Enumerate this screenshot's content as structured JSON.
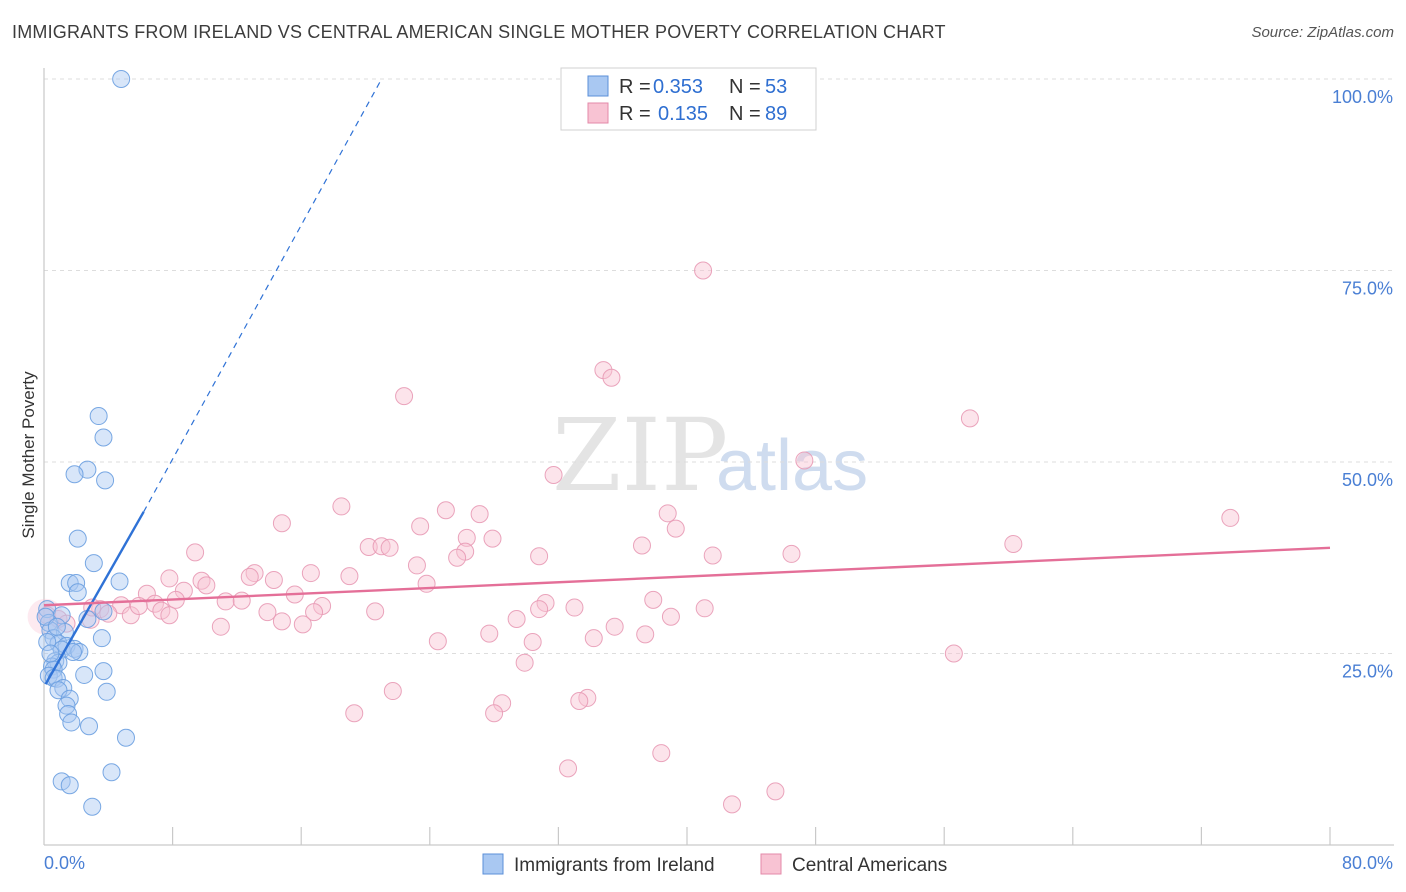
{
  "title": "IMMIGRANTS FROM IRELAND VS CENTRAL AMERICAN SINGLE MOTHER POVERTY CORRELATION CHART",
  "source": "Source: ZipAtlas.com",
  "watermark": {
    "part1": "ZIP",
    "part2": "atlas"
  },
  "legend_top": {
    "r_label": "R =",
    "n_label": "N =",
    "rows": [
      {
        "r": "0.353",
        "n": "53",
        "color": "#a9c8f2",
        "border": "#5b8fd8"
      },
      {
        "r": "0.135",
        "n": "89",
        "color": "#f8c3d3",
        "border": "#e38aa8"
      }
    ]
  },
  "legend_bottom": [
    {
      "label": "Immigrants from Ireland",
      "color": "#a9c8f2",
      "border": "#5b8fd8"
    },
    {
      "label": "Central Americans",
      "color": "#f8c3d3",
      "border": "#e38aa8"
    }
  ],
  "colors": {
    "blue_fill": "#a9c8f2",
    "blue_stroke": "#6a9ee0",
    "blue_line": "#2f72d6",
    "pink_fill": "#f8c3d3",
    "pink_stroke": "#e89ab5",
    "pink_line": "#e46f98",
    "axis_text": "#4a7fd4",
    "grid": "#dddddd"
  },
  "chart_data": {
    "type": "scatter",
    "title": "IMMIGRANTS FROM IRELAND VS CENTRAL AMERICAN SINGLE MOTHER POVERTY CORRELATION CHART",
    "xlabel": "",
    "ylabel": "Single Mother Poverty",
    "x_tick_labels": [
      "0.0%",
      "80.0%"
    ],
    "y_tick_labels": [
      "25.0%",
      "50.0%",
      "75.0%",
      "100.0%"
    ],
    "xlim": [
      0,
      80
    ],
    "ylim": [
      0,
      100
    ],
    "grid": true,
    "legend_position": "top-center",
    "series": [
      {
        "name": "Immigrants from Ireland",
        "r": 0.353,
        "n": 53,
        "trend": {
          "x0": 0.1,
          "y0": 21.0,
          "x1": 6.2,
          "y1": 43.5,
          "dashed_to_x": 21.0,
          "dashed_to_y": 100.0
        },
        "points": [
          [
            4.8,
            100
          ],
          [
            3.4,
            56
          ],
          [
            3.7,
            53.2
          ],
          [
            2.7,
            49
          ],
          [
            1.9,
            48.4
          ],
          [
            3.8,
            47.6
          ],
          [
            2.1,
            40
          ],
          [
            3.1,
            36.8
          ],
          [
            1.6,
            34.2
          ],
          [
            2.0,
            34.2
          ],
          [
            4.7,
            34.4
          ],
          [
            2.1,
            33
          ],
          [
            0.2,
            30.8
          ],
          [
            1.1,
            30
          ],
          [
            2.7,
            29.5
          ],
          [
            3.7,
            30.5
          ],
          [
            0.3,
            29
          ],
          [
            0.4,
            28
          ],
          [
            1.3,
            27.8
          ],
          [
            0.6,
            27
          ],
          [
            3.6,
            27
          ],
          [
            0.9,
            26.3
          ],
          [
            1.4,
            26
          ],
          [
            1.1,
            25.5
          ],
          [
            1.9,
            25.6
          ],
          [
            2.2,
            25.2
          ],
          [
            1.8,
            25.2
          ],
          [
            0.7,
            24
          ],
          [
            0.9,
            23.8
          ],
          [
            0.5,
            23.3
          ],
          [
            0.6,
            22.9
          ],
          [
            3.7,
            22.7
          ],
          [
            0.3,
            22.1
          ],
          [
            0.6,
            21.8
          ],
          [
            0.8,
            21.7
          ],
          [
            2.5,
            22.2
          ],
          [
            1.2,
            20.5
          ],
          [
            0.9,
            20.2
          ],
          [
            3.9,
            20
          ],
          [
            1.6,
            19.1
          ],
          [
            1.4,
            18.2
          ],
          [
            1.5,
            17.1
          ],
          [
            1.7,
            16
          ],
          [
            2.8,
            15.5
          ],
          [
            5.1,
            14
          ],
          [
            4.2,
            9.5
          ],
          [
            1.1,
            8.3
          ],
          [
            1.6,
            7.8
          ],
          [
            3.0,
            5
          ],
          [
            0.1,
            29.8
          ],
          [
            0.2,
            26.5
          ],
          [
            0.4,
            25
          ],
          [
            0.8,
            28.5
          ]
        ]
      },
      {
        "name": "Central Americans",
        "r": 0.135,
        "n": 89,
        "trend": {
          "x0": 0.0,
          "y0": 31.3,
          "x1": 80.0,
          "y1": 38.8
        },
        "points": [
          [
            41,
            75
          ],
          [
            34.8,
            62
          ],
          [
            35.3,
            61
          ],
          [
            22.4,
            58.6
          ],
          [
            57.6,
            55.7
          ],
          [
            47.3,
            50.2
          ],
          [
            31.7,
            48.3
          ],
          [
            38.8,
            43.3
          ],
          [
            18.5,
            44.2
          ],
          [
            25.0,
            43.7
          ],
          [
            27.1,
            43.2
          ],
          [
            73.8,
            42.7
          ],
          [
            14.8,
            42
          ],
          [
            23.4,
            41.6
          ],
          [
            39.3,
            41.3
          ],
          [
            26.3,
            40.1
          ],
          [
            27.9,
            40
          ],
          [
            20.2,
            38.9
          ],
          [
            21.0,
            39
          ],
          [
            21.5,
            38.8
          ],
          [
            37.2,
            39.1
          ],
          [
            60.3,
            39.3
          ],
          [
            9.4,
            38.2
          ],
          [
            26.2,
            38.3
          ],
          [
            25.7,
            37.5
          ],
          [
            30.8,
            37.7
          ],
          [
            41.6,
            37.8
          ],
          [
            23.2,
            36.5
          ],
          [
            13.1,
            35.5
          ],
          [
            16.6,
            35.5
          ],
          [
            19.0,
            35.1
          ],
          [
            12.8,
            35
          ],
          [
            9.8,
            34.5
          ],
          [
            14.3,
            34.6
          ],
          [
            10.1,
            33.9
          ],
          [
            23.8,
            34.1
          ],
          [
            8.7,
            33.2
          ],
          [
            6.4,
            32.8
          ],
          [
            15.6,
            32.7
          ],
          [
            8.2,
            32
          ],
          [
            11.3,
            31.8
          ],
          [
            12.3,
            31.9
          ],
          [
            6.9,
            31.5
          ],
          [
            4.8,
            31.3
          ],
          [
            31.2,
            31.6
          ],
          [
            37.9,
            32
          ],
          [
            7.3,
            30.6
          ],
          [
            3.5,
            30.8
          ],
          [
            17.3,
            31.2
          ],
          [
            30.8,
            30.8
          ],
          [
            41.1,
            30.9
          ],
          [
            33.0,
            31.0
          ],
          [
            4.0,
            30.2
          ],
          [
            13.9,
            30.4
          ],
          [
            16.8,
            30.4
          ],
          [
            20.6,
            30.5
          ],
          [
            5.4,
            30.0
          ],
          [
            7.8,
            30
          ],
          [
            2.9,
            29.4
          ],
          [
            0.2,
            30.0
          ],
          [
            0.9,
            29.5
          ],
          [
            1.4,
            28.9
          ],
          [
            29.4,
            29.5
          ],
          [
            14.8,
            29.2
          ],
          [
            16.1,
            28.8
          ],
          [
            11.0,
            28.5
          ],
          [
            35.5,
            28.5
          ],
          [
            39.0,
            29.8
          ],
          [
            27.7,
            27.6
          ],
          [
            34.2,
            27
          ],
          [
            37.4,
            27.5
          ],
          [
            24.5,
            26.6
          ],
          [
            30.4,
            26.5
          ],
          [
            56.6,
            25
          ],
          [
            29.9,
            23.8
          ],
          [
            21.7,
            20.1
          ],
          [
            33.8,
            19.2
          ],
          [
            33.3,
            18.8
          ],
          [
            28.5,
            18.5
          ],
          [
            28.0,
            17.2
          ],
          [
            19.3,
            17.2
          ],
          [
            38.4,
            12.0
          ],
          [
            32.6,
            10.0
          ],
          [
            45.5,
            7.0
          ],
          [
            42.8,
            5.3
          ],
          [
            46.5,
            38.0
          ],
          [
            7.8,
            34.8
          ],
          [
            5.9,
            31.2
          ],
          [
            3.0,
            31.0
          ]
        ]
      }
    ]
  }
}
